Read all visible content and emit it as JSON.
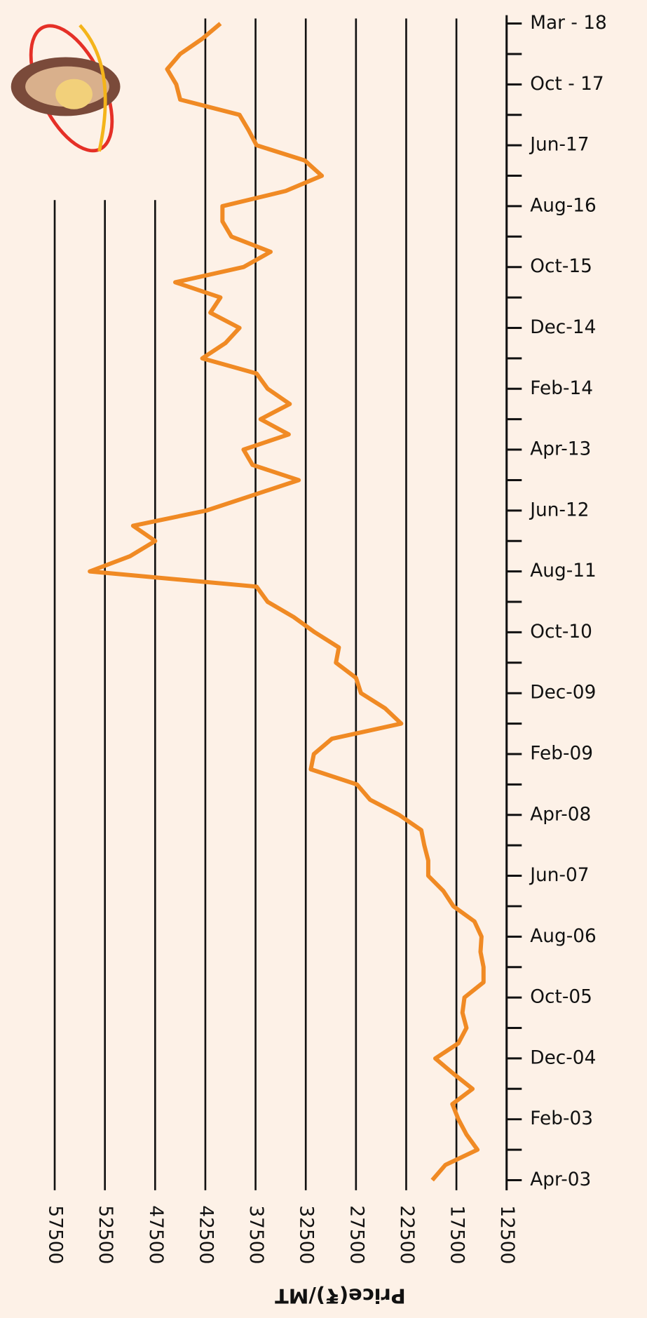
{
  "chart_data": {
    "type": "line",
    "orientation": "rotated",
    "y_label": "Price(₹)/MT",
    "categories": [
      "Apr-03",
      null,
      null,
      null,
      "Feb-03",
      null,
      null,
      null,
      "Dec-04",
      null,
      null,
      null,
      "Oct-05",
      null,
      null,
      null,
      "Aug-06",
      null,
      null,
      null,
      "Jun-07",
      null,
      null,
      null,
      "Apr-08",
      null,
      null,
      null,
      "Feb-09",
      null,
      null,
      null,
      "Dec-09",
      null,
      null,
      null,
      "Oct-10",
      null,
      null,
      null,
      "Aug-11",
      null,
      null,
      null,
      "Jun-12",
      null,
      null,
      null,
      "Apr-13",
      null,
      null,
      null,
      "Feb-14",
      null,
      null,
      null,
      "Dec-14",
      null,
      null,
      null,
      "Oct-15",
      null,
      null,
      null,
      "Aug-16",
      null,
      null,
      null,
      "Jun-17",
      null,
      null,
      null,
      "Oct - 17",
      null,
      null,
      null,
      "Mar - 18"
    ],
    "values": [
      19900,
      18600,
      15400,
      16500,
      17300,
      17900,
      15900,
      17800,
      19600,
      17300,
      16500,
      16900,
      16700,
      14800,
      14800,
      15100,
      15000,
      15700,
      17800,
      18800,
      20300,
      20300,
      20700,
      21000,
      23200,
      26100,
      27400,
      32000,
      31700,
      29900,
      23000,
      24600,
      27000,
      27500,
      29500,
      29200,
      31600,
      33700,
      36300,
      37400,
      54000,
      50000,
      47500,
      49700,
      42400,
      37800,
      33200,
      37800,
      38700,
      34200,
      37000,
      34100,
      36300,
      37400,
      42800,
      40500,
      39100,
      42000,
      41000,
      45500,
      38700,
      36000,
      39900,
      40800,
      40800,
      34500,
      30900,
      32600,
      37400,
      38200,
      39100,
      45000,
      45400,
      46300,
      45000,
      42800,
      41000
    ],
    "color": "#f08a24",
    "ylim": [
      12500,
      57500
    ],
    "yticks": [
      12500,
      17500,
      22500,
      27500,
      32500,
      37500,
      42500,
      47500,
      52500,
      57500
    ],
    "grid": true
  }
}
